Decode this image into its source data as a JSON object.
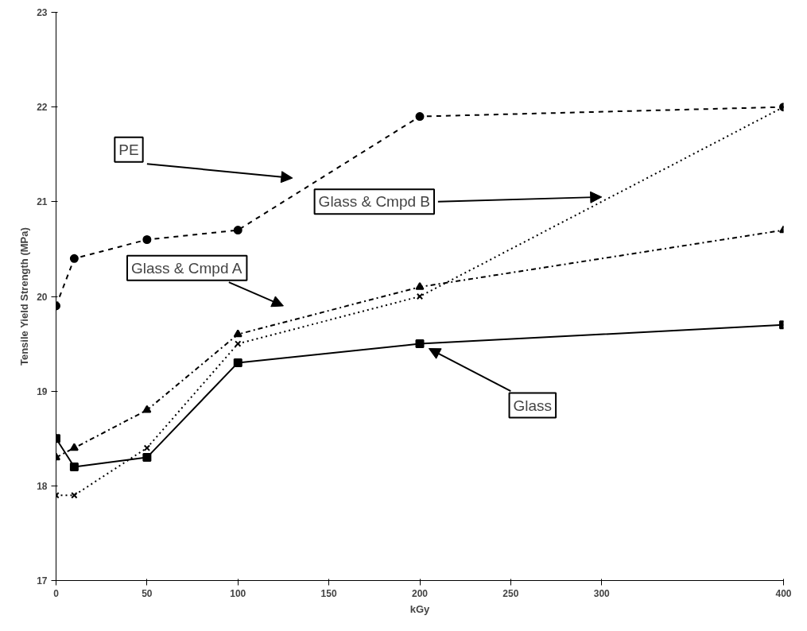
{
  "chart_data": {
    "type": "line",
    "xlabel": "kGy",
    "ylabel": "Tensile Yield Strength (MPa)",
    "x": [
      0,
      10,
      50,
      100,
      200,
      400
    ],
    "xlim": [
      0,
      400
    ],
    "xticks": [
      0,
      50,
      100,
      150,
      200,
      250,
      300,
      400
    ],
    "ylim": [
      17,
      23
    ],
    "yticks": [
      17,
      18,
      19,
      20,
      21,
      22,
      23
    ],
    "grid": false,
    "legend": false,
    "series": [
      {
        "name": "PE",
        "color": "#000000",
        "marker": "circle",
        "line_style": "dashed",
        "values": [
          19.9,
          20.4,
          20.6,
          20.7,
          21.9,
          22.0
        ]
      },
      {
        "name": "Glass",
        "color": "#000000",
        "marker": "square",
        "line_style": "solid",
        "values": [
          18.5,
          18.2,
          18.3,
          19.3,
          19.5,
          19.7
        ]
      },
      {
        "name": "Glass & Cmpd A",
        "color": "#000000",
        "marker": "triangle",
        "line_style": "dashdot",
        "values": [
          18.3,
          18.4,
          18.8,
          19.6,
          20.1,
          20.7
        ]
      },
      {
        "name": "Glass & Cmpd B",
        "color": "#000000",
        "marker": "x",
        "line_style": "dotted",
        "values": [
          17.9,
          17.9,
          18.4,
          19.5,
          20.0,
          22.0
        ]
      }
    ]
  }
}
